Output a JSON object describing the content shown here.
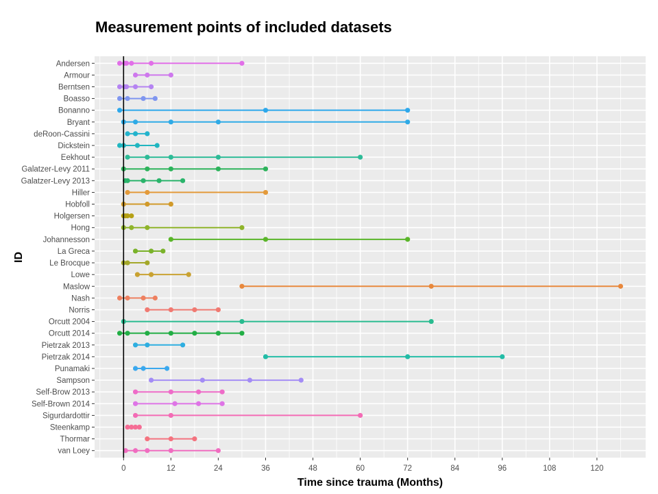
{
  "chart_data": {
    "type": "dumbbell-timeline",
    "title": "Measurement points of included datasets",
    "xlabel": "Time since trauma (Months)",
    "ylabel": "ID",
    "xlim": [
      -7.35,
      132.35
    ],
    "xticks": [
      0,
      12,
      24,
      36,
      48,
      60,
      72,
      84,
      96,
      108,
      120
    ],
    "xtick_labels": [
      "0",
      "12",
      "24",
      "36",
      "48",
      "60",
      "72",
      "84",
      "96",
      "108",
      "120"
    ],
    "reference_line_x": 0,
    "grid": true,
    "legend": "none",
    "series": [
      {
        "name": "Andersen",
        "color": "#E16FE8",
        "values": [
          -1,
          0.25,
          0.75,
          2,
          7,
          30
        ]
      },
      {
        "name": "Armour",
        "color": "#CE78ED",
        "values": [
          3,
          6,
          12
        ]
      },
      {
        "name": "Berntsen",
        "color": "#B584F2",
        "values": [
          -1,
          0.25,
          0.75,
          3,
          7
        ]
      },
      {
        "name": "Boasso",
        "color": "#7F96F0",
        "values": [
          -1,
          1,
          5,
          8
        ]
      },
      {
        "name": "Bonanno",
        "color": "#2EA8EB",
        "values": [
          -1,
          36,
          72
        ]
      },
      {
        "name": "Bryant",
        "color": "#2EAAE6",
        "values": [
          0,
          3,
          12,
          24,
          72
        ]
      },
      {
        "name": "deRoon-Cassini",
        "color": "#23B3CC",
        "values": [
          1,
          3,
          6
        ]
      },
      {
        "name": "Dickstein",
        "color": "#20B6C0",
        "values": [
          -1,
          0,
          3.5,
          8.5
        ]
      },
      {
        "name": "Eekhout",
        "color": "#2EBB97",
        "values": [
          1,
          6,
          12,
          24,
          60
        ]
      },
      {
        "name": "Galatzer-Levy 2011",
        "color": "#2DB35B",
        "values": [
          0,
          6,
          12,
          24,
          36
        ]
      },
      {
        "name": "Galatzer-Levy 2013",
        "color": "#2AB46B",
        "values": [
          0.4,
          1,
          5,
          9,
          15
        ]
      },
      {
        "name": "Hiller",
        "color": "#E39A3A",
        "values": [
          1,
          6,
          36
        ]
      },
      {
        "name": "Hobfoll",
        "color": "#D19A2A",
        "values": [
          0,
          6,
          12
        ]
      },
      {
        "name": "Holgersen",
        "color": "#B5A015",
        "values": [
          0,
          0.5,
          1,
          2
        ]
      },
      {
        "name": "Hong",
        "color": "#8FB42A",
        "values": [
          0,
          2,
          6,
          30
        ]
      },
      {
        "name": "Johannesson",
        "color": "#5AB52A",
        "values": [
          12,
          36,
          72
        ]
      },
      {
        "name": "La Greca",
        "color": "#7AB22A",
        "values": [
          3,
          7,
          10
        ]
      },
      {
        "name": "Le Brocque",
        "color": "#A4A82A",
        "values": [
          0,
          1,
          6
        ]
      },
      {
        "name": "Lowe",
        "color": "#C9A232",
        "values": [
          3.5,
          7,
          16.5
        ]
      },
      {
        "name": "Maslow",
        "color": "#E8883C",
        "values": [
          30,
          78,
          126
        ]
      },
      {
        "name": "Nash",
        "color": "#EE8060",
        "values": [
          -1,
          1,
          5,
          8
        ]
      },
      {
        "name": "Norris",
        "color": "#F07A72",
        "values": [
          6,
          12,
          18,
          24
        ]
      },
      {
        "name": "Orcutt 2004",
        "color": "#28BB8F",
        "values": [
          0,
          30,
          78
        ]
      },
      {
        "name": "Orcutt 2014",
        "color": "#22AE45",
        "values": [
          -1,
          1,
          6,
          12,
          18,
          24,
          30
        ]
      },
      {
        "name": "Pietrzak 2013",
        "color": "#2EAEE0",
        "values": [
          3,
          6,
          15
        ]
      },
      {
        "name": "Pietrzak 2014",
        "color": "#22BCA6",
        "values": [
          36,
          72,
          96
        ]
      },
      {
        "name": "Punamaki",
        "color": "#3AA8EE",
        "values": [
          3,
          5,
          11
        ]
      },
      {
        "name": "Sampson",
        "color": "#A38CF5",
        "values": [
          7,
          20,
          32,
          45
        ]
      },
      {
        "name": "Self-Brow 2013",
        "color": "#EE6CC8",
        "values": [
          3,
          12,
          19,
          25
        ]
      },
      {
        "name": "Self-Brown 2014",
        "color": "#DE74E6",
        "values": [
          3,
          13,
          19,
          25
        ]
      },
      {
        "name": "Sigurdardottir",
        "color": "#F36BB5",
        "values": [
          3,
          12,
          60
        ]
      },
      {
        "name": "Steenkamp",
        "color": "#F56D95",
        "values": [
          1,
          2,
          3,
          4
        ]
      },
      {
        "name": "Thormar",
        "color": "#F4737F",
        "values": [
          6,
          12,
          18
        ]
      },
      {
        "name": "van Loey",
        "color": "#F06DC0",
        "values": [
          0.5,
          3,
          6,
          12,
          24
        ]
      }
    ]
  },
  "colors": {
    "panel_background": "#EBEBEB",
    "grid": "#FFFFFF",
    "reference_line": "#000000"
  }
}
